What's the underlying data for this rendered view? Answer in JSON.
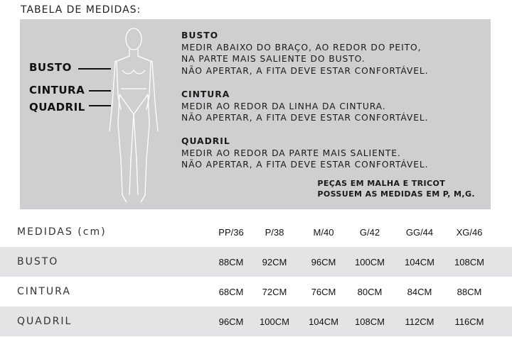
{
  "title": "TABELA DE MEDIDAS:",
  "figure_labels": [
    "BUSTO",
    "CINTURA",
    "QUADRIL"
  ],
  "sections": [
    {
      "heading": "BUSTO",
      "lines": [
        "MEDIR ABAIXO DO BRAÇO, AO REDOR DO PEITO,",
        "NA PARTE MAIS SALIENTE DO BUSTO.",
        "NÃO APERTAR, A FITA DEVE ESTAR CONFORTÁVEL."
      ]
    },
    {
      "heading": "CINTURA",
      "lines": [
        "MEDIR AO REDOR DA LINHA DA CINTURA.",
        "NÃO APERTAR, A FITA DEVE ESTAR CONFORTÁVEL."
      ]
    },
    {
      "heading": "QUADRIL",
      "lines": [
        "MEDIR AO REDOR DA PARTE MAIS SALIENTE.",
        "NÃO APERTAR, A FITA DEVE ESTAR CONFORTÁVEL."
      ]
    }
  ],
  "note": [
    "PEÇAS EM MALHA E TRICOT",
    "POSSUEM AS MEDIDAS EM P, M,G."
  ],
  "table": {
    "header": "MEDIDAS (cm)",
    "sizes": [
      "PP/36",
      "P/38",
      "M/40",
      "G/42",
      "GG/44",
      "XG/46"
    ],
    "rows": [
      {
        "label": "BUSTO",
        "values": [
          "88CM",
          "92CM",
          "96CM",
          "100CM",
          "104CM",
          "108CM"
        ]
      },
      {
        "label": "CINTURA",
        "values": [
          "68CM",
          "72CM",
          "76CM",
          "80CM",
          "84CM",
          "88CM"
        ]
      },
      {
        "label": "QUADRIL",
        "values": [
          "96CM",
          "100CM",
          "104CM",
          "108CM",
          "112CM",
          "116CM"
        ]
      }
    ]
  },
  "colors": {
    "panel": "#cfcfd1",
    "stripe": "#e4e4e6"
  }
}
